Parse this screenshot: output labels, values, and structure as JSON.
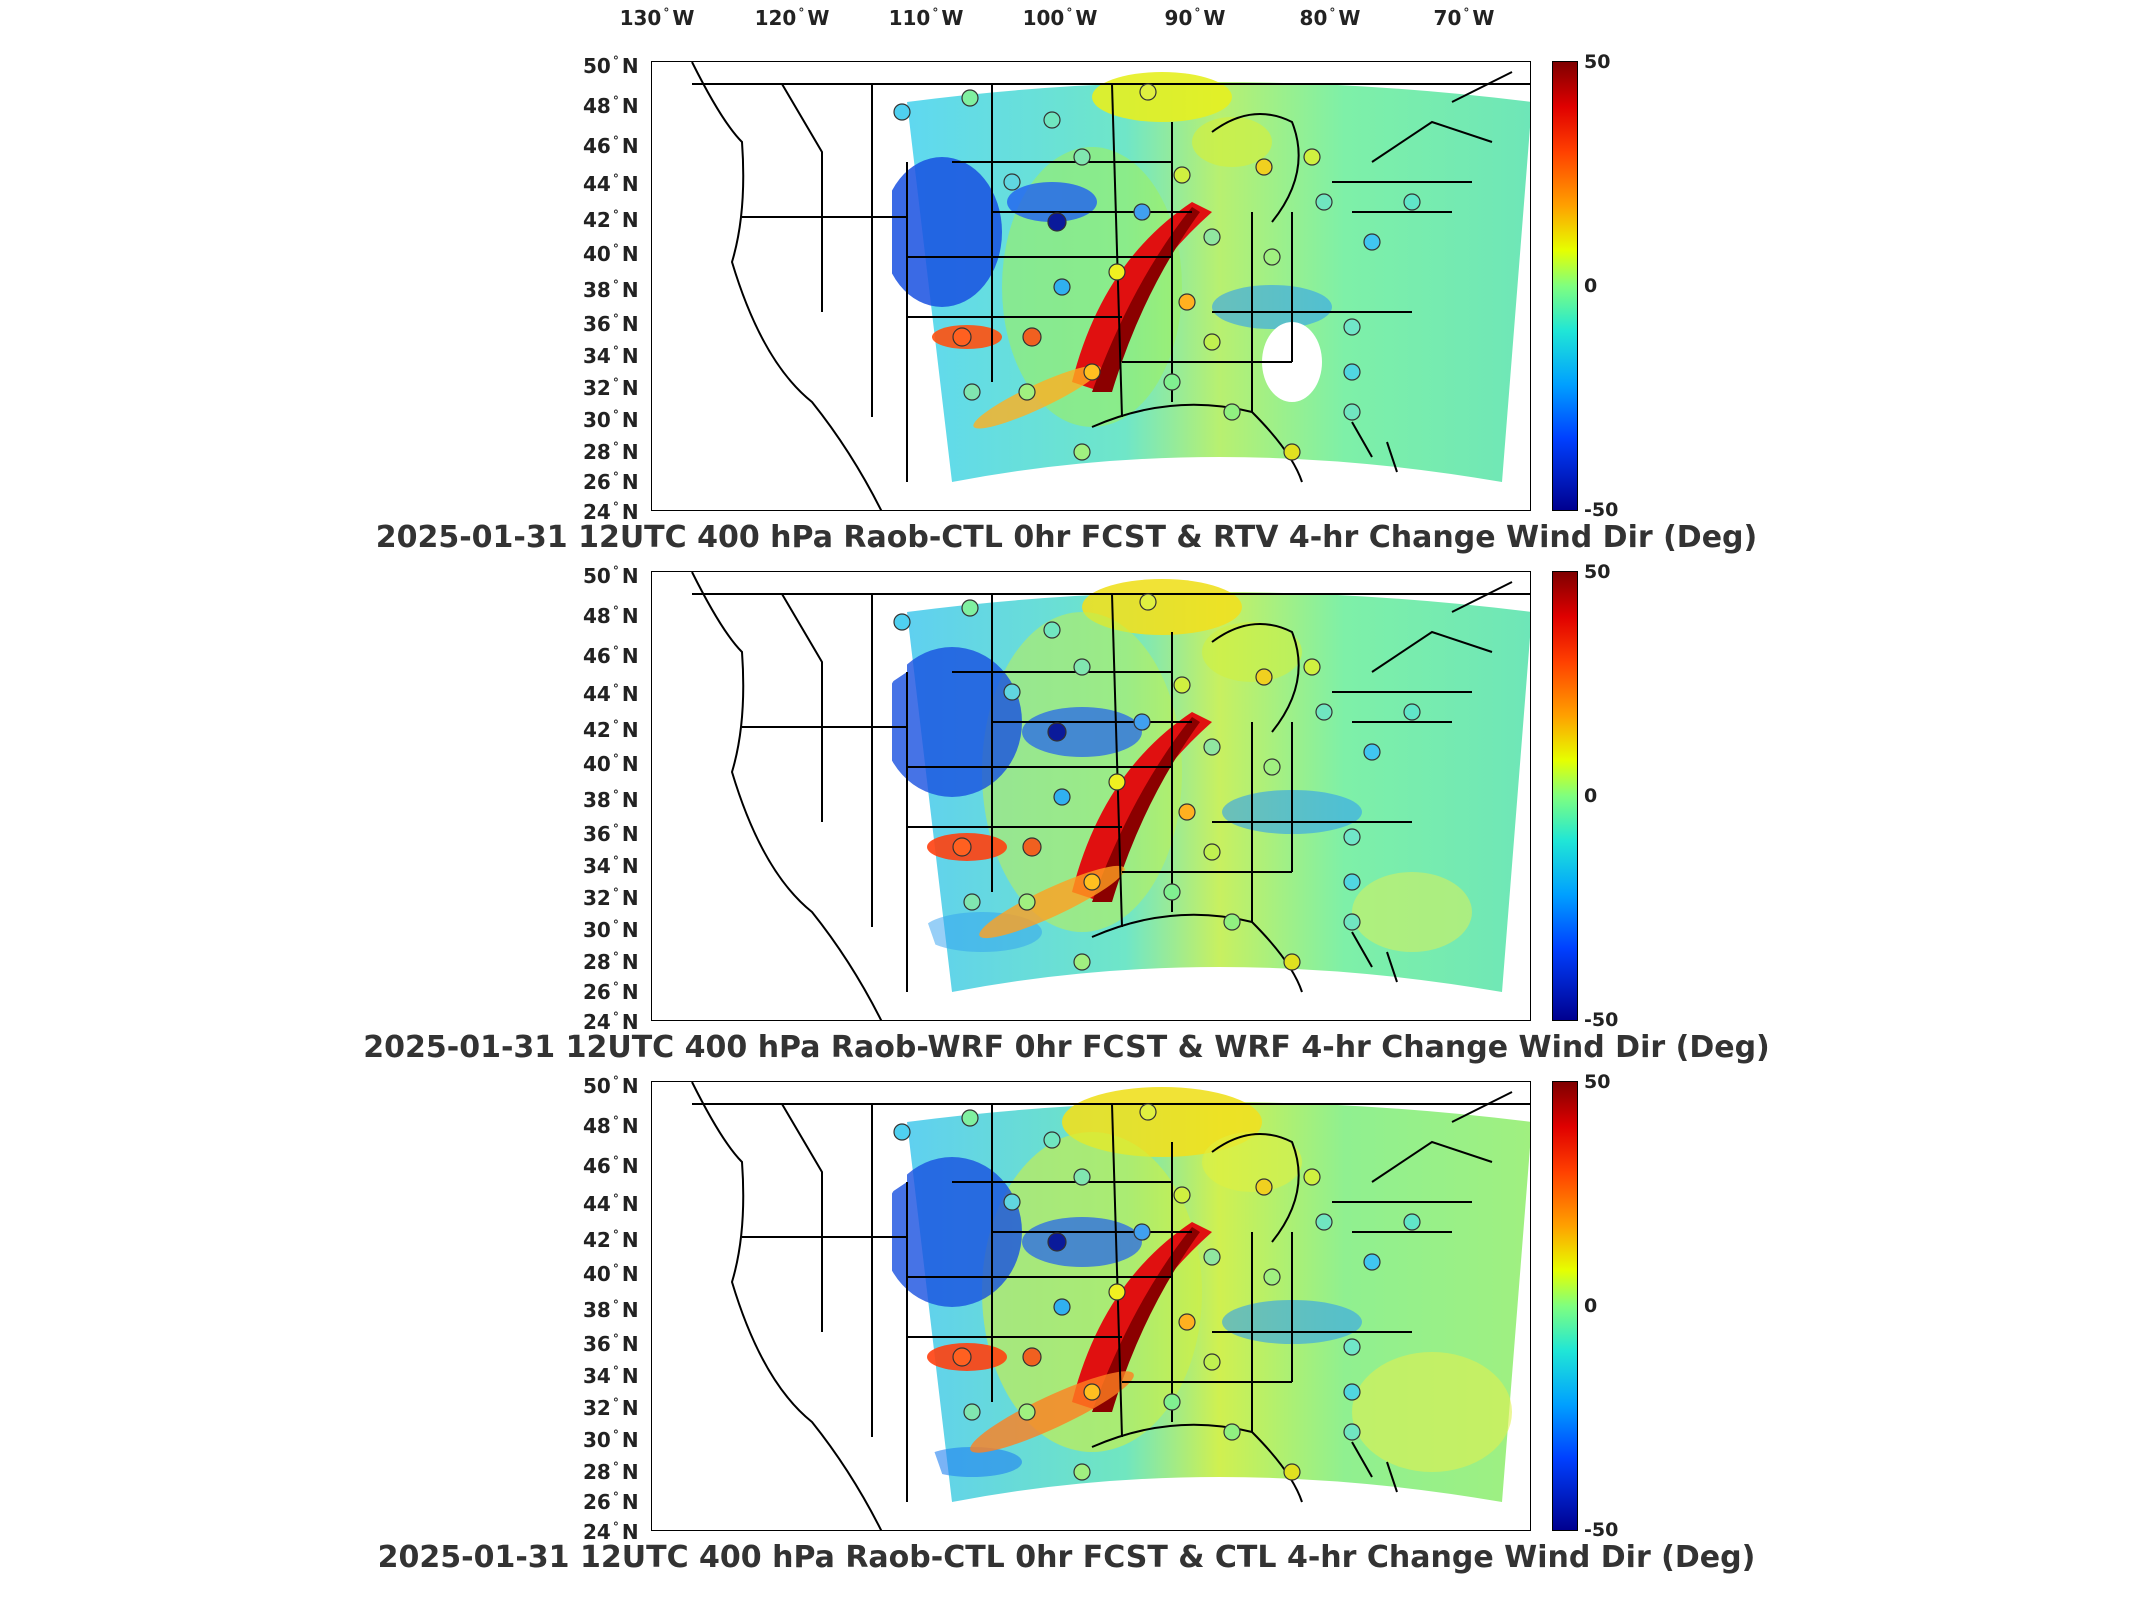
{
  "lon_labels": [
    {
      "deg": "130",
      "hemi": "W"
    },
    {
      "deg": "120",
      "hemi": "W"
    },
    {
      "deg": "110",
      "hemi": "W"
    },
    {
      "deg": "100",
      "hemi": "W"
    },
    {
      "deg": "90",
      "hemi": "W"
    },
    {
      "deg": "80",
      "hemi": "W"
    },
    {
      "deg": "70",
      "hemi": "W"
    }
  ],
  "lat_labels": [
    {
      "deg": "50",
      "hemi": "N"
    },
    {
      "deg": "48",
      "hemi": "N"
    },
    {
      "deg": "46",
      "hemi": "N"
    },
    {
      "deg": "44",
      "hemi": "N"
    },
    {
      "deg": "42",
      "hemi": "N"
    },
    {
      "deg": "40",
      "hemi": "N"
    },
    {
      "deg": "38",
      "hemi": "N"
    },
    {
      "deg": "36",
      "hemi": "N"
    },
    {
      "deg": "34",
      "hemi": "N"
    },
    {
      "deg": "32",
      "hemi": "N"
    },
    {
      "deg": "30",
      "hemi": "N"
    },
    {
      "deg": "28",
      "hemi": "N"
    },
    {
      "deg": "26",
      "hemi": "N"
    },
    {
      "deg": "24",
      "hemi": "N"
    }
  ],
  "colorbar": {
    "max": "50",
    "mid": "0",
    "min": "-50",
    "colors": [
      "#7f0000",
      "#ff4000",
      "#e6ff00",
      "#7fff7f",
      "#00a0ff",
      "#00008f"
    ]
  },
  "panels": [
    {
      "title": "2025-01-31 12UTC 400 hPa Raob-CTL 0hr FCST & RTV 4-hr Change Wind Dir (Deg)"
    },
    {
      "title": "2025-01-31 12UTC 400 hPa Raob-WRF 0hr FCST & WRF 4-hr Change Wind Dir (Deg)"
    },
    {
      "title": "2025-01-31 12UTC 400 hPa Raob-CTL 0hr FCST & CTL 4-hr Change Wind Dir (Deg)"
    }
  ]
}
